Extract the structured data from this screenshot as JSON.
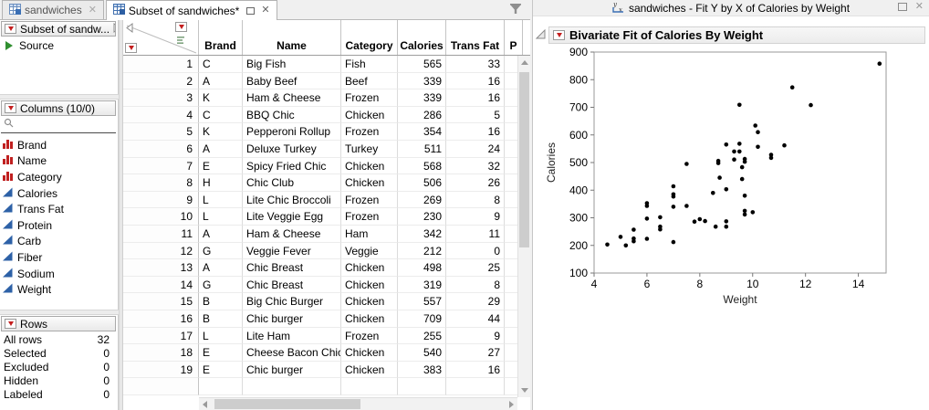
{
  "colors": {
    "panel_bg": "#f0f0f0",
    "accent_red_triangle": "#c41e1e",
    "nominal_icon_red": "#c02020",
    "continuous_icon_blue": "#2d61a7",
    "source_play_green": "#2f8f2f",
    "point_color": "#000000",
    "plot_frame_border": "#9a9a9a"
  },
  "left_window": {
    "tabs": [
      {
        "label": "sandwiches",
        "active": false
      },
      {
        "label": "Subset of sandwiches*",
        "active": true
      }
    ],
    "sidebar": {
      "table_panel": {
        "title": "Subset of sandw...",
        "source_label": "Source"
      },
      "columns_panel": {
        "title": "Columns (10/0)",
        "items": [
          {
            "name": "Brand",
            "type": "nominal"
          },
          {
            "name": "Name",
            "type": "nominal"
          },
          {
            "name": "Category",
            "type": "nominal"
          },
          {
            "name": "Calories",
            "type": "continuous"
          },
          {
            "name": "Trans Fat",
            "type": "continuous"
          },
          {
            "name": "Protein",
            "type": "continuous"
          },
          {
            "name": "Carb",
            "type": "continuous"
          },
          {
            "name": "Fiber",
            "type": "continuous"
          },
          {
            "name": "Sodium",
            "type": "continuous"
          },
          {
            "name": "Weight",
            "type": "continuous"
          }
        ]
      },
      "rows_panel": {
        "title": "Rows",
        "stats": [
          {
            "label": "All rows",
            "value": "32"
          },
          {
            "label": "Selected",
            "value": "0"
          },
          {
            "label": "Excluded",
            "value": "0"
          },
          {
            "label": "Hidden",
            "value": "0"
          },
          {
            "label": "Labeled",
            "value": "0"
          }
        ]
      }
    },
    "grid": {
      "columns": [
        {
          "label": "Brand",
          "width": 48,
          "align": "left"
        },
        {
          "label": "Name",
          "width": 108,
          "align": "left"
        },
        {
          "label": "Category",
          "width": 62,
          "align": "left"
        },
        {
          "label": "Calories",
          "width": 53,
          "align": "right"
        },
        {
          "label": "Trans Fat",
          "width": 64,
          "align": "right"
        },
        {
          "label": "P",
          "width": 20,
          "align": "left"
        }
      ],
      "rows": [
        {
          "n": "1",
          "cells": [
            "C",
            "Big Fish",
            "Fish",
            "565",
            "33",
            ""
          ]
        },
        {
          "n": "2",
          "cells": [
            "A",
            "Baby Beef",
            "Beef",
            "339",
            "16",
            ""
          ]
        },
        {
          "n": "3",
          "cells": [
            "K",
            "Ham & Cheese",
            "Frozen",
            "339",
            "16",
            ""
          ]
        },
        {
          "n": "4",
          "cells": [
            "C",
            "BBQ Chic",
            "Chicken",
            "286",
            "5",
            ""
          ]
        },
        {
          "n": "5",
          "cells": [
            "K",
            "Pepperoni Rollup",
            "Frozen",
            "354",
            "16",
            ""
          ]
        },
        {
          "n": "6",
          "cells": [
            "A",
            "Deluxe Turkey",
            "Turkey",
            "511",
            "24",
            ""
          ]
        },
        {
          "n": "7",
          "cells": [
            "E",
            "Spicy Fried Chic",
            "Chicken",
            "568",
            "32",
            ""
          ]
        },
        {
          "n": "8",
          "cells": [
            "H",
            "Chic Club",
            "Chicken",
            "506",
            "26",
            ""
          ]
        },
        {
          "n": "9",
          "cells": [
            "L",
            "Lite Chic Broccoli",
            "Frozen",
            "269",
            "8",
            ""
          ]
        },
        {
          "n": "10",
          "cells": [
            "L",
            "Lite Veggie Egg",
            "Frozen",
            "230",
            "9",
            ""
          ]
        },
        {
          "n": "11",
          "cells": [
            "A",
            "Ham & Cheese",
            "Ham",
            "342",
            "11",
            ""
          ]
        },
        {
          "n": "12",
          "cells": [
            "G",
            "Veggie Fever",
            "Veggie",
            "212",
            "0",
            ""
          ]
        },
        {
          "n": "13",
          "cells": [
            "A",
            "Chic Breast",
            "Chicken",
            "498",
            "25",
            ""
          ]
        },
        {
          "n": "14",
          "cells": [
            "G",
            "Chic Breast",
            "Chicken",
            "319",
            "8",
            ""
          ]
        },
        {
          "n": "15",
          "cells": [
            "B",
            "Big Chic Burger",
            "Chicken",
            "557",
            "29",
            ""
          ]
        },
        {
          "n": "16",
          "cells": [
            "B",
            "Chic burger",
            "Chicken",
            "709",
            "44",
            ""
          ]
        },
        {
          "n": "17",
          "cells": [
            "L",
            "Lite Ham",
            "Frozen",
            "255",
            "9",
            ""
          ]
        },
        {
          "n": "18",
          "cells": [
            "E",
            "Cheese Bacon Chic",
            "Chicken",
            "540",
            "27",
            ""
          ]
        },
        {
          "n": "19",
          "cells": [
            "E",
            "Chic burger",
            "Chicken",
            "383",
            "16",
            ""
          ]
        }
      ]
    }
  },
  "right_window": {
    "title": "sandwiches - Fit Y by X of Calories by Weight",
    "report_title": "Bivariate Fit of Calories By Weight"
  },
  "chart_data": {
    "type": "scatter",
    "title": "Bivariate Fit of Calories By Weight",
    "xlabel": "Weight",
    "ylabel": "Calories",
    "xlim": [
      4,
      15.05
    ],
    "ylim": [
      100,
      900
    ],
    "x_ticks": [
      4,
      6,
      8,
      10,
      12,
      14
    ],
    "y_ticks": [
      100,
      200,
      300,
      400,
      500,
      600,
      700,
      800,
      900
    ],
    "grid": false,
    "legend": "none",
    "marker_color": "#000000",
    "points": [
      [
        4.5,
        203
      ],
      [
        5.0,
        231
      ],
      [
        5.2,
        200
      ],
      [
        5.5,
        257
      ],
      [
        5.5,
        225
      ],
      [
        5.5,
        215
      ],
      [
        6.0,
        353
      ],
      [
        6.0,
        343
      ],
      [
        6.0,
        297
      ],
      [
        6.0,
        224
      ],
      [
        6.5,
        302
      ],
      [
        6.5,
        268
      ],
      [
        6.5,
        258
      ],
      [
        7.0,
        414
      ],
      [
        7.0,
        385
      ],
      [
        7.0,
        377
      ],
      [
        7.0,
        340
      ],
      [
        7.0,
        212
      ],
      [
        7.5,
        495
      ],
      [
        7.5,
        343
      ],
      [
        7.8,
        286
      ],
      [
        8.0,
        295
      ],
      [
        8.2,
        288
      ],
      [
        8.5,
        390
      ],
      [
        8.6,
        268
      ],
      [
        8.7,
        506
      ],
      [
        8.7,
        498
      ],
      [
        8.75,
        445
      ],
      [
        9.0,
        565
      ],
      [
        9.0,
        403
      ],
      [
        9.0,
        287
      ],
      [
        9.0,
        268
      ],
      [
        9.3,
        540
      ],
      [
        9.3,
        511
      ],
      [
        9.5,
        709
      ],
      [
        9.5,
        568
      ],
      [
        9.5,
        540
      ],
      [
        9.6,
        483
      ],
      [
        9.6,
        440
      ],
      [
        9.7,
        513
      ],
      [
        9.7,
        503
      ],
      [
        9.7,
        380
      ],
      [
        9.7,
        325
      ],
      [
        9.7,
        312
      ],
      [
        10.0,
        320
      ],
      [
        10.1,
        634
      ],
      [
        10.2,
        610
      ],
      [
        10.2,
        557
      ],
      [
        10.7,
        528
      ],
      [
        10.7,
        517
      ],
      [
        11.2,
        562
      ],
      [
        11.5,
        772
      ],
      [
        12.2,
        708
      ],
      [
        14.8,
        858
      ]
    ]
  }
}
